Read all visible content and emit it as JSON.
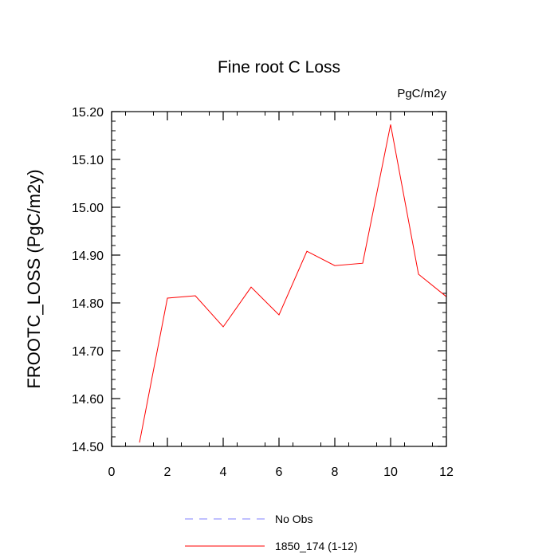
{
  "chart_data": {
    "type": "line",
    "title": "Fine root C Loss",
    "units_label": "PgC/m2y",
    "ylabel": "FROOTC_LOSS  (PgC/m2y)",
    "xlabel": "",
    "xlim": [
      0,
      12
    ],
    "ylim": [
      14.5,
      15.2
    ],
    "x_ticks": [
      "0",
      "2",
      "4",
      "6",
      "8",
      "10",
      "12"
    ],
    "y_ticks": [
      "14.50",
      "14.60",
      "14.70",
      "14.80",
      "14.90",
      "15.00",
      "15.10",
      "15.20"
    ],
    "grid": false,
    "legend_position": "bottom",
    "series": [
      {
        "name": "1850_174 (1-12)",
        "color": "#ff0000",
        "style": "solid",
        "x": [
          1,
          2,
          3,
          4,
          5,
          6,
          7,
          8,
          9,
          10,
          11,
          12
        ],
        "values": [
          14.508,
          14.81,
          14.815,
          14.75,
          14.833,
          14.775,
          14.908,
          14.878,
          14.883,
          15.173,
          14.86,
          14.813
        ]
      }
    ],
    "legend": [
      {
        "label": "No Obs",
        "color": "#8080ff",
        "style": "dashed"
      },
      {
        "label": "1850_174 (1-12)",
        "color": "#ff0000",
        "style": "solid"
      }
    ]
  }
}
